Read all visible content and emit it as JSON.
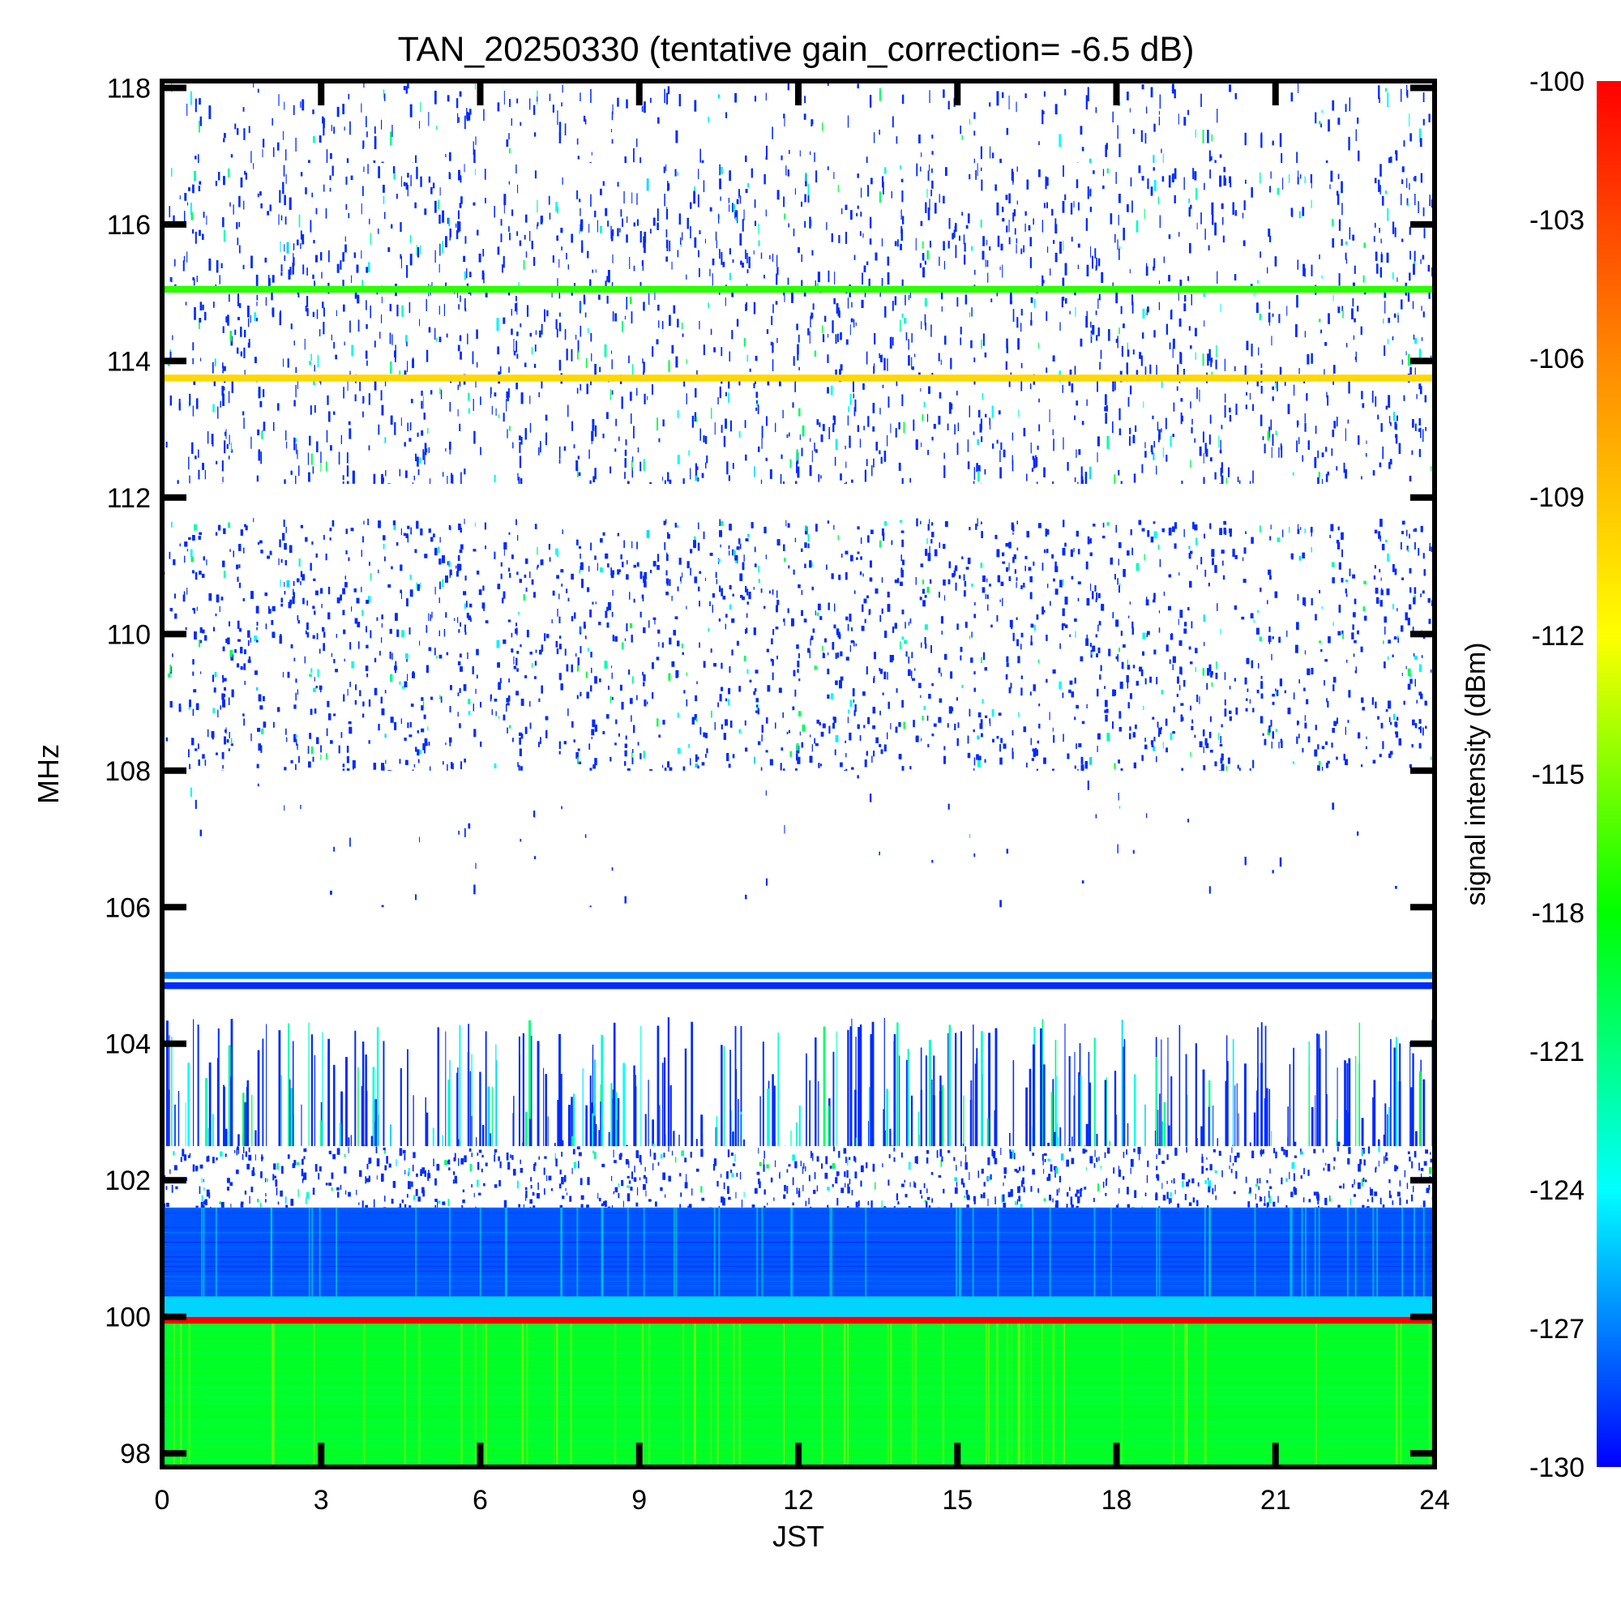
{
  "chart_data": {
    "type": "heatmap",
    "title": "TAN_20250330 (tentative gain_correction= -6.5 dB)",
    "xlabel": "JST",
    "ylabel": "MHz",
    "colorbar_label": "signal intensity (dBm)",
    "xlim": [
      0,
      24
    ],
    "ylim": [
      97.8,
      118.1
    ],
    "x_ticks": [
      "0",
      "3",
      "6",
      "9",
      "12",
      "15",
      "18",
      "21",
      "24"
    ],
    "y_ticks": [
      "98",
      "100",
      "102",
      "104",
      "106",
      "108",
      "110",
      "112",
      "114",
      "116",
      "118"
    ],
    "colorbar_range": [
      -130,
      -100
    ],
    "colorbar_ticks": [
      "-100",
      "-103",
      "-106",
      "-109",
      "-112",
      "-115",
      "-118",
      "-121",
      "-124",
      "-127",
      "-130"
    ],
    "colorscale": [
      "#0000ff",
      "#00ffff",
      "#00ff00",
      "#ffff00",
      "#ff8800",
      "#ff0000"
    ],
    "bands": [
      {
        "f_min": 97.8,
        "f_max": 99.9,
        "dbm": -119,
        "pattern": "continuous"
      },
      {
        "f_min": 99.9,
        "f_max": 100.0,
        "dbm": -100,
        "pattern": "continuous-line"
      },
      {
        "f_min": 100.0,
        "f_max": 100.3,
        "dbm": -125,
        "pattern": "continuous"
      },
      {
        "f_min": 100.3,
        "f_max": 101.6,
        "dbm": -128,
        "pattern": "continuous"
      },
      {
        "f_min": 101.6,
        "f_max": 102.5,
        "dbm": -129,
        "pattern": "speckle-dense"
      },
      {
        "f_min": 102.5,
        "f_max": 104.6,
        "dbm": -129,
        "pattern": "vertical-bursts"
      },
      {
        "f_min": 104.8,
        "f_max": 104.9,
        "dbm": -129,
        "pattern": "continuous-line"
      },
      {
        "f_min": 104.95,
        "f_max": 105.05,
        "dbm": -127,
        "pattern": "continuous-line"
      },
      {
        "f_min": 106.0,
        "f_max": 108.0,
        "dbm": -129,
        "pattern": "sparse"
      },
      {
        "f_min": 108.0,
        "f_max": 111.7,
        "dbm": -129,
        "pattern": "speckle-dense"
      },
      {
        "f_min": 112.2,
        "f_max": 116.9,
        "dbm": -129,
        "pattern": "speckle-medium"
      },
      {
        "f_min": 113.7,
        "f_max": 113.8,
        "dbm": -110,
        "pattern": "continuous-line"
      },
      {
        "f_min": 115.0,
        "f_max": 115.1,
        "dbm": -117,
        "pattern": "continuous-line"
      },
      {
        "f_min": 116.9,
        "f_max": 118.1,
        "dbm": -129,
        "pattern": "speckle-sparse"
      }
    ]
  }
}
